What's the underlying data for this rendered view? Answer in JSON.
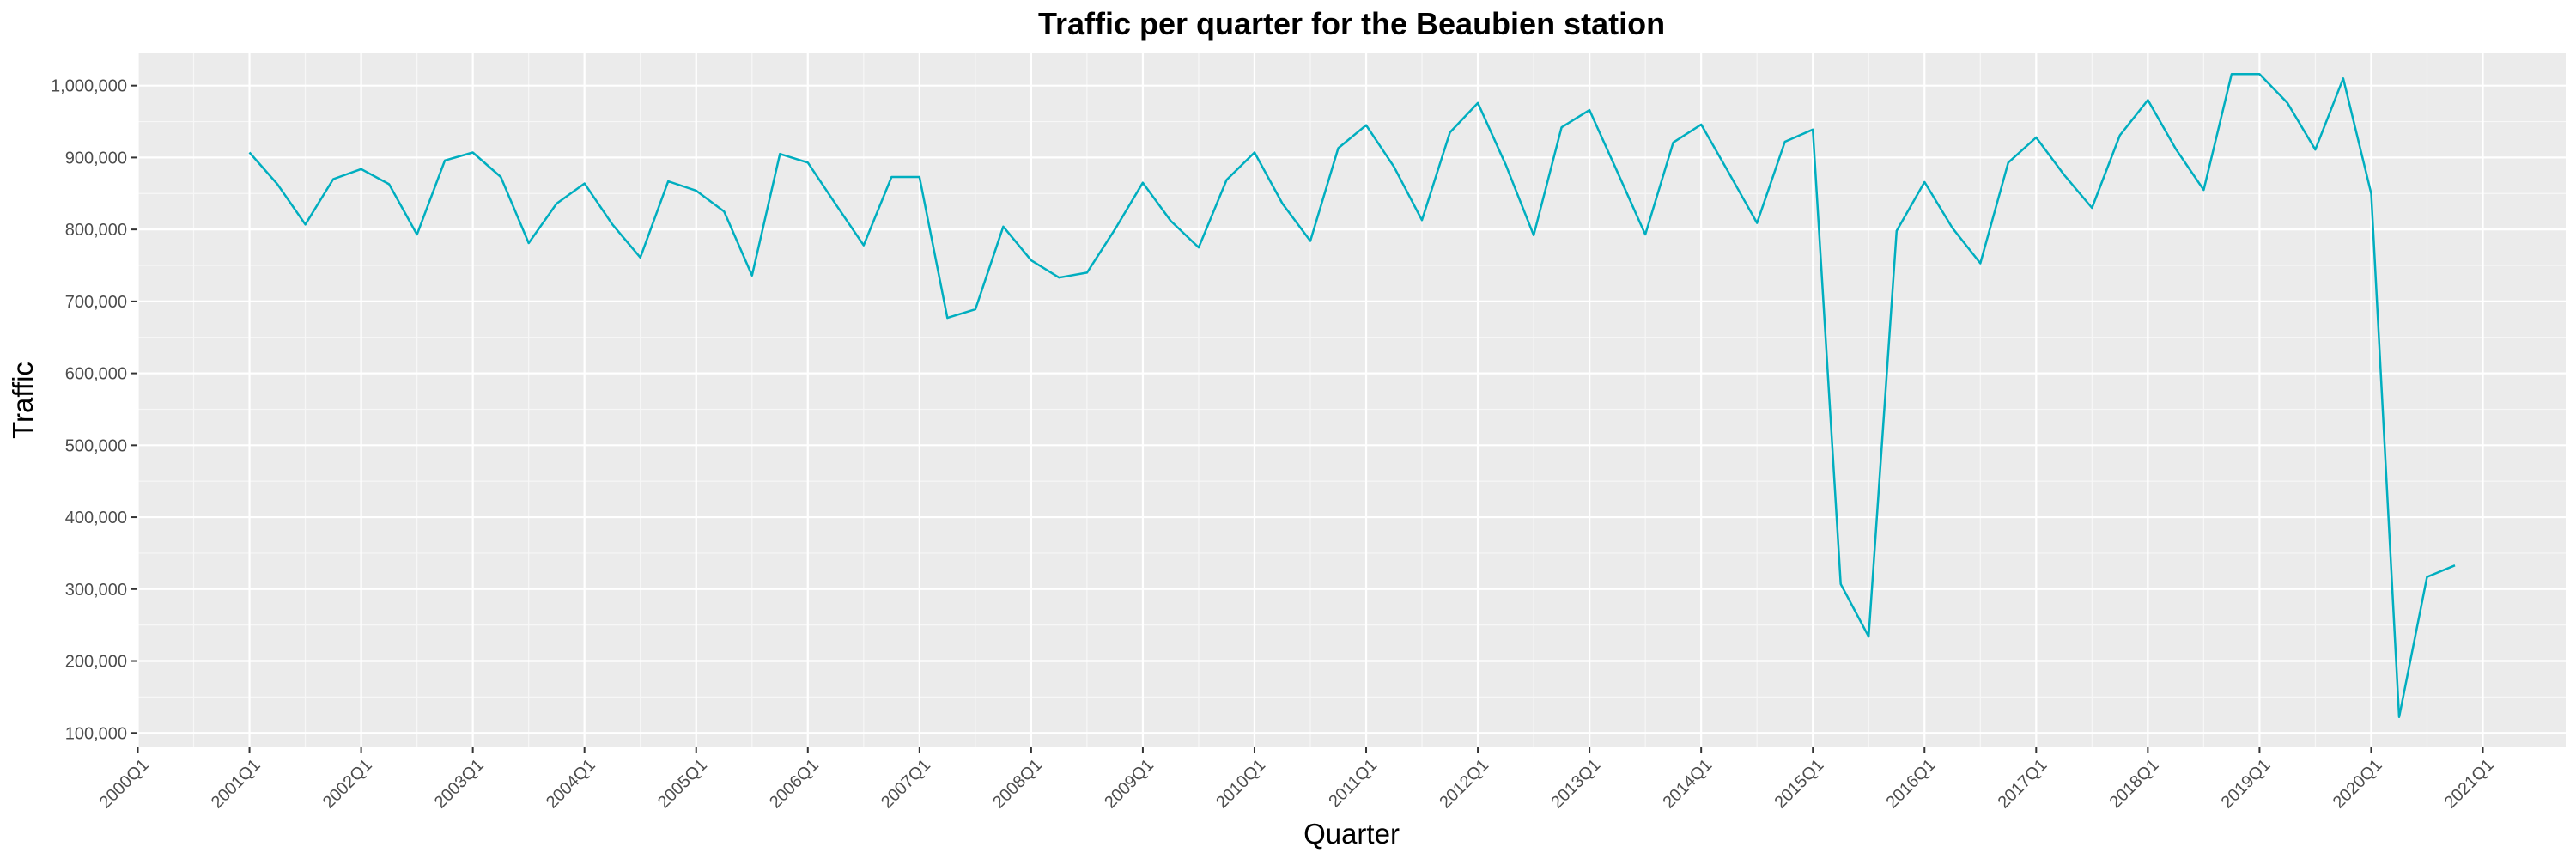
{
  "chart_data": {
    "type": "line",
    "title": "Traffic per quarter for the Beaubien station",
    "xlabel": "Quarter",
    "ylabel": "Traffic",
    "ylim": [
      80000,
      1045000
    ],
    "y_ticks": [
      100000,
      200000,
      300000,
      400000,
      500000,
      600000,
      700000,
      800000,
      900000,
      1000000
    ],
    "y_tick_labels": [
      "100,000",
      "200,000",
      "300,000",
      "400,000",
      "500,000",
      "600,000",
      "700,000",
      "800,000",
      "900,000",
      "1,000,000"
    ],
    "x_tick_labels": [
      "2000Q1",
      "2001Q1",
      "2002Q1",
      "2003Q1",
      "2004Q1",
      "2005Q1",
      "2006Q1",
      "2007Q1",
      "2008Q1",
      "2009Q1",
      "2010Q1",
      "2011Q1",
      "2012Q1",
      "2013Q1",
      "2014Q1",
      "2015Q1",
      "2016Q1",
      "2017Q1",
      "2018Q1",
      "2019Q1",
      "2020Q1",
      "2021Q1"
    ],
    "grid": true,
    "background": "#ebebeb",
    "series": [
      {
        "color": "#00aebf",
        "x": [
          "2001Q1",
          "2001Q2",
          "2001Q3",
          "2001Q4",
          "2002Q1",
          "2002Q2",
          "2002Q3",
          "2002Q4",
          "2003Q1",
          "2003Q2",
          "2003Q3",
          "2003Q4",
          "2004Q1",
          "2004Q2",
          "2004Q3",
          "2004Q4",
          "2005Q1",
          "2005Q2",
          "2005Q3",
          "2005Q4",
          "2006Q1",
          "2006Q2",
          "2006Q3",
          "2006Q4",
          "2007Q1",
          "2007Q2",
          "2007Q3",
          "2007Q4",
          "2008Q1",
          "2008Q2",
          "2008Q3",
          "2008Q4",
          "2009Q1",
          "2009Q2",
          "2009Q3",
          "2009Q4",
          "2010Q1",
          "2010Q2",
          "2010Q3",
          "2010Q4",
          "2011Q1",
          "2011Q2",
          "2011Q3",
          "2011Q4",
          "2012Q1",
          "2012Q2",
          "2012Q3",
          "2012Q4",
          "2013Q1",
          "2013Q2",
          "2013Q3",
          "2013Q4",
          "2014Q1",
          "2014Q2",
          "2014Q3",
          "2014Q4",
          "2015Q1",
          "2015Q2",
          "2015Q3",
          "2015Q4",
          "2016Q1",
          "2016Q2",
          "2016Q3",
          "2016Q4",
          "2017Q1",
          "2017Q2",
          "2017Q3",
          "2017Q4",
          "2018Q1",
          "2018Q2",
          "2018Q3",
          "2018Q4",
          "2019Q1",
          "2019Q2",
          "2019Q3",
          "2019Q4",
          "2020Q1",
          "2020Q2",
          "2020Q3",
          "2020Q4"
        ],
        "values": [
          907000,
          863000,
          807000,
          870000,
          884000,
          863000,
          793000,
          896000,
          907000,
          873000,
          781000,
          836000,
          864000,
          807000,
          761000,
          867000,
          854000,
          825000,
          736000,
          905000,
          893000,
          835000,
          778000,
          873000,
          873000,
          677000,
          689000,
          804000,
          757000,
          733000,
          740000,
          800000,
          865000,
          812000,
          775000,
          869000,
          907000,
          836000,
          784000,
          913000,
          945000,
          887000,
          813000,
          935000,
          976000,
          890000,
          792000,
          942000,
          966000,
          880000,
          793000,
          921000,
          946000,
          878000,
          809000,
          922000,
          939000,
          307000,
          234000,
          798000,
          866000,
          802000,
          753000,
          893000,
          928000,
          876000,
          830000,
          931000,
          980000,
          912000,
          855000,
          1016000,
          1016000,
          976000,
          911000,
          1010000,
          850000,
          122000,
          317000,
          333000
        ]
      }
    ]
  }
}
